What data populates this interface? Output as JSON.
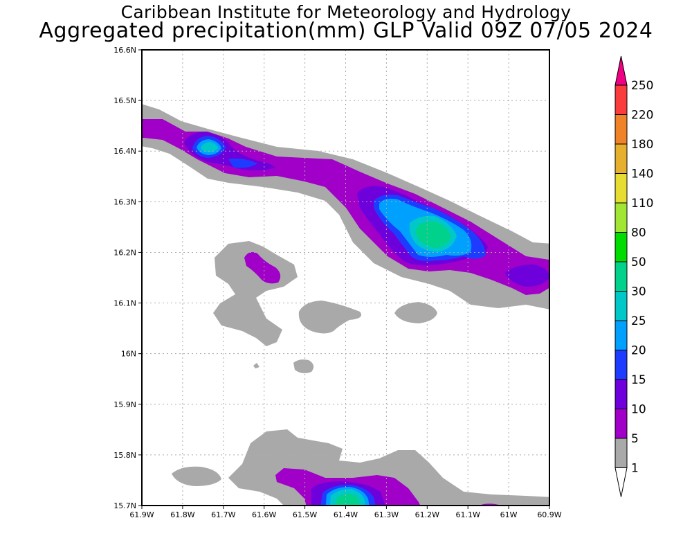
{
  "title": {
    "line1": "Caribbean Institute for Meteorology and Hydrology",
    "line2": "Aggregated precipitation(mm) GLP Valid 09Z 07/05 2024"
  },
  "map": {
    "lon_range": [
      -61.9,
      -60.9
    ],
    "lat_range": [
      15.7,
      16.6
    ],
    "x_ticks": [
      "61.9W",
      "61.8W",
      "61.7W",
      "61.6W",
      "61.5W",
      "61.4W",
      "61.3W",
      "61.2W",
      "61.1W",
      "61W",
      "60.9W"
    ],
    "y_ticks": [
      "15.7N",
      "15.8N",
      "15.9N",
      "16N",
      "16.1N",
      "16.2N",
      "16.3N",
      "16.4N",
      "16.5N",
      "16.6N"
    ],
    "grid": "dotted"
  },
  "colorbar": {
    "levels": [
      "1",
      "5",
      "10",
      "15",
      "20",
      "25",
      "30",
      "50",
      "80",
      "110",
      "140",
      "180",
      "220",
      "250"
    ],
    "colors": [
      "#ffffff",
      "#a9a9a9",
      "#a000c8",
      "#6e00dc",
      "#1e3cff",
      "#00a0ff",
      "#00c8c8",
      "#00d28c",
      "#00dc00",
      "#a0e632",
      "#e6dc32",
      "#e6af2d",
      "#f08228",
      "#fa3c3c",
      "#f00082"
    ],
    "ends": "triangular"
  },
  "precip_fields": [
    {
      "level": "1-5 mm",
      "color": "#a9a9a9"
    },
    {
      "level": "5-10 mm",
      "color": "#a000c8"
    },
    {
      "level": "10-15 mm",
      "color": "#6e00dc"
    },
    {
      "level": "15-20 mm",
      "color": "#1e3cff"
    },
    {
      "level": "20-25 mm",
      "color": "#00a0ff"
    },
    {
      "level": "25-30 mm",
      "color": "#00c8c8"
    },
    {
      "level": "30-50 mm",
      "color": "#00d28c"
    }
  ]
}
